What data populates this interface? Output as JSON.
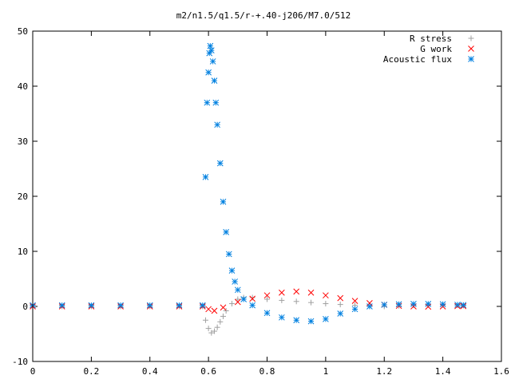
{
  "chart_data": {
    "type": "scatter",
    "title": "m2/n1.5/q1.5/r-+.40-j206/M7.0/512",
    "xlabel": "",
    "ylabel": "",
    "xlim": [
      0,
      1.6
    ],
    "ylim": [
      -10,
      50
    ],
    "x_ticks": [
      0,
      0.2,
      0.4,
      0.6,
      0.8,
      1,
      1.2,
      1.4,
      1.6
    ],
    "x_tick_labels": [
      "0",
      "0.2",
      "0.4",
      "0.6",
      "0.8",
      "1",
      "1.2",
      "1.4",
      "1.6"
    ],
    "y_ticks": [
      -10,
      0,
      10,
      20,
      30,
      40,
      50
    ],
    "y_tick_labels": [
      "-10",
      "0",
      "10",
      "20",
      "30",
      "40",
      "50"
    ],
    "grid": false,
    "legend": "top-right",
    "series": [
      {
        "name": "R stress",
        "marker": "plus",
        "color": "#a0a0a0",
        "x": [
          0.0,
          0.1,
          0.2,
          0.3,
          0.4,
          0.5,
          0.58,
          0.59,
          0.6,
          0.61,
          0.62,
          0.63,
          0.64,
          0.65,
          0.66,
          0.68,
          0.7,
          0.72,
          0.75,
          0.8,
          0.85,
          0.9,
          0.95,
          1.0,
          1.05,
          1.1,
          1.15,
          1.2,
          1.25,
          1.3,
          1.35,
          1.4,
          1.45,
          1.47
        ],
        "y": [
          0,
          0,
          0,
          0,
          0,
          0,
          0,
          -2.5,
          -4,
          -4.8,
          -4.5,
          -3.8,
          -2.8,
          -1.8,
          -0.8,
          0.5,
          1.3,
          1.6,
          1.6,
          1.3,
          1.1,
          0.9,
          0.7,
          0.5,
          0.35,
          0.2,
          0.05,
          0.0,
          0.1,
          0.2,
          0.25,
          0.25,
          0.2,
          0.15
        ]
      },
      {
        "name": "G work",
        "marker": "cross",
        "color": "#ff0000",
        "x": [
          0.0,
          0.1,
          0.2,
          0.3,
          0.4,
          0.5,
          0.58,
          0.6,
          0.62,
          0.65,
          0.7,
          0.75,
          0.8,
          0.85,
          0.9,
          0.95,
          1.0,
          1.05,
          1.1,
          1.15,
          1.2,
          1.25,
          1.3,
          1.35,
          1.4,
          1.45,
          1.47
        ],
        "y": [
          0,
          0,
          0,
          0,
          0,
          0,
          0,
          -0.5,
          -0.8,
          -0.2,
          0.8,
          1.4,
          2.0,
          2.5,
          2.7,
          2.5,
          2.0,
          1.5,
          1.0,
          0.6,
          0.3,
          0.1,
          0.0,
          -0.05,
          0.0,
          0.05,
          0.05
        ]
      },
      {
        "name": "Acoustic flux",
        "marker": "star",
        "color": "#0080e0",
        "x": [
          0.0,
          0.1,
          0.2,
          0.3,
          0.4,
          0.5,
          0.58,
          0.59,
          0.595,
          0.6,
          0.603,
          0.606,
          0.61,
          0.615,
          0.62,
          0.625,
          0.63,
          0.64,
          0.65,
          0.66,
          0.67,
          0.68,
          0.69,
          0.7,
          0.72,
          0.75,
          0.8,
          0.85,
          0.9,
          0.95,
          1.0,
          1.05,
          1.1,
          1.15,
          1.2,
          1.25,
          1.3,
          1.35,
          1.4,
          1.45,
          1.47
        ],
        "y": [
          0.2,
          0.2,
          0.2,
          0.2,
          0.2,
          0.2,
          0.2,
          23.5,
          37,
          42.5,
          46,
          47.3,
          46.5,
          44.5,
          41,
          37,
          33,
          26,
          19,
          13.5,
          9.5,
          6.5,
          4.5,
          3.0,
          1.3,
          0.2,
          -1.2,
          -2.0,
          -2.5,
          -2.7,
          -2.3,
          -1.3,
          -0.5,
          0.0,
          0.3,
          0.4,
          0.45,
          0.45,
          0.4,
          0.3,
          0.25
        ]
      }
    ]
  }
}
